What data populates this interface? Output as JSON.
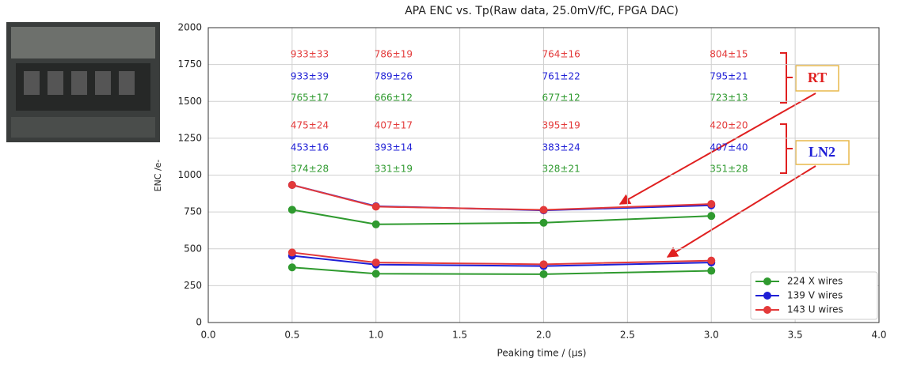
{
  "chart_data": {
    "type": "line",
    "title": "APA ENC vs. Tp(Raw data, 25.0mV/fC, FPGA DAC)",
    "xlabel": "Peaking time / (µs)",
    "ylabel": "ENC /e-",
    "x": [
      0.5,
      1.0,
      2.0,
      3.0
    ],
    "xlim": [
      0,
      4
    ],
    "xticks": [
      {
        "value": 0,
        "label": "0.0"
      },
      0.5,
      {
        "value": 1,
        "label": "1.0"
      },
      1.5,
      {
        "value": 2,
        "label": "2.0"
      },
      2.5,
      {
        "value": 3,
        "label": "3.0"
      },
      3.5,
      {
        "value": 4,
        "label": "4.0"
      }
    ],
    "ylim": [
      0,
      2000
    ],
    "yticks": [
      0,
      250,
      500,
      750,
      1000,
      1250,
      1500,
      1750,
      2000
    ],
    "grid": true,
    "legend": "lower right",
    "series": [
      {
        "name": "224 X wires",
        "color": "#2f9a2f",
        "values": [
          765,
          666,
          677,
          723
        ],
        "value_labels": [
          "765±17",
          "666±12",
          "677±12",
          "723±13"
        ]
      },
      {
        "name": "139 V wires",
        "color": "#1f1fd6",
        "values": [
          933,
          789,
          761,
          795
        ],
        "value_labels": [
          "933±39",
          "789±26",
          "761±22",
          "795±21"
        ]
      },
      {
        "name": "143 U wires",
        "color": "#e33a3a",
        "values": [
          933,
          786,
          764,
          804
        ],
        "value_labels": [
          "933±33",
          "786±19",
          "764±16",
          "804±15"
        ]
      },
      {
        "color": "#2f9a2f",
        "values": [
          374,
          331,
          328,
          351
        ],
        "value_labels": [
          "374±28",
          "331±19",
          "328±21",
          "351±28"
        ]
      },
      {
        "color": "#1f1fd6",
        "values": [
          453,
          393,
          383,
          407
        ],
        "value_labels": [
          "453±16",
          "393±14",
          "383±24",
          "407±40"
        ]
      },
      {
        "color": "#e33a3a",
        "values": [
          475,
          407,
          395,
          420
        ],
        "value_labels": [
          "475±24",
          "407±17",
          "395±19",
          "420±20"
        ]
      }
    ],
    "annotations": [
      "RT",
      "LN2"
    ]
  }
}
